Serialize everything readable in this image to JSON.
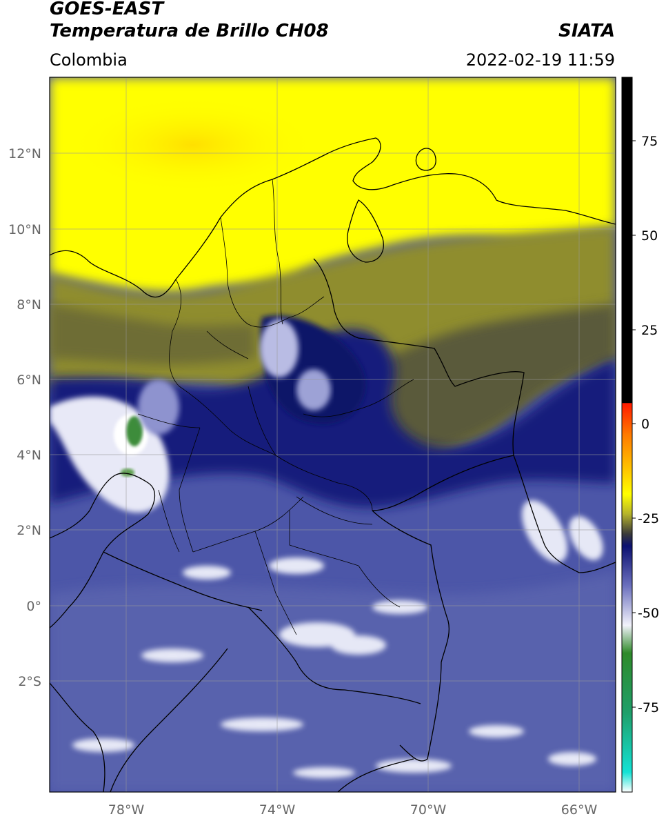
{
  "header": {
    "satellite": "GOES-EAST",
    "product": "Temperatura de Brillo CH08",
    "source": "SIATA",
    "region": "Colombia",
    "datetime": "2022-02-19 11:59"
  },
  "map": {
    "lon_labels": [
      "78°W",
      "74°W",
      "70°W",
      "66°W"
    ],
    "lat_labels": [
      "12°N",
      "10°N",
      "8°N",
      "6°N",
      "4°N",
      "2°N",
      "0°",
      "2°S"
    ]
  },
  "colorbar": {
    "tick_labels": [
      "75",
      "50",
      "25",
      "0",
      "-25",
      "-50",
      "-75"
    ],
    "stops": [
      {
        "value": 90,
        "color": "#000000"
      },
      {
        "value": 8,
        "color": "#000000"
      },
      {
        "value": 7.9,
        "color": "#ff1a00"
      },
      {
        "value": 0,
        "color": "#ff7a00"
      },
      {
        "value": -10,
        "color": "#ffd000"
      },
      {
        "value": -15,
        "color": "#ffff00"
      },
      {
        "value": -20,
        "color": "#b5b32a"
      },
      {
        "value": -25,
        "color": "#3a3a3a"
      },
      {
        "value": -28,
        "color": "#0b1070"
      },
      {
        "value": -38,
        "color": "#6a6fbd"
      },
      {
        "value": -48,
        "color": "#f2f2fb"
      },
      {
        "value": -55,
        "color": "#2f8a2a"
      },
      {
        "value": -70,
        "color": "#1f9f6a"
      },
      {
        "value": -85,
        "color": "#14e2d5"
      },
      {
        "value": -90,
        "color": "#ffffff"
      }
    ]
  }
}
